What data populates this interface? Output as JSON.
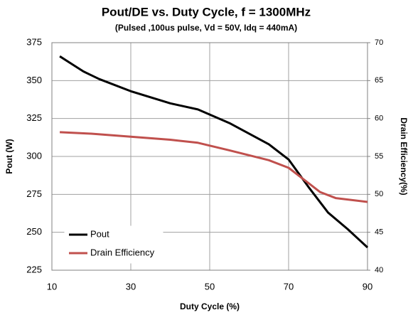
{
  "chart_data": {
    "type": "line",
    "title": "Pout/DE vs. Duty Cycle, f = 1300MHz",
    "subtitle": "(Pulsed ,100us pulse, Vd = 50V, Idq = 440mA)",
    "x_label": "Duty Cycle (%)",
    "y_label": "Pout (W)",
    "y2_label": "Drain Efficiency(%)",
    "xlim": [
      10,
      90
    ],
    "xticks": [
      10,
      30,
      50,
      70,
      90
    ],
    "ylim": [
      225,
      375
    ],
    "yticks": [
      225,
      250,
      275,
      300,
      325,
      350,
      375
    ],
    "y2lim": [
      40,
      70
    ],
    "y2ticks": [
      40,
      45,
      50,
      55,
      60,
      65,
      70
    ],
    "grid": true,
    "legend": "lower left",
    "series": [
      {
        "name": "Pout",
        "color": "#000000",
        "x": [
          12,
          15,
          18,
          22,
          30,
          40,
          47,
          55,
          65,
          70,
          75,
          80,
          85,
          90
        ],
        "values": [
          366,
          361,
          356,
          351,
          343,
          335,
          331,
          322,
          308,
          298,
          280,
          263,
          252,
          240
        ]
      },
      {
        "name": "Drain Efficiency",
        "color": "#c0504d",
        "axis": "y2",
        "x": [
          12,
          20,
          30,
          40,
          47,
          55,
          65,
          70,
          75,
          78,
          82,
          90
        ],
        "values": [
          58.2,
          58,
          57.6,
          57.2,
          56.8,
          55.8,
          54.5,
          53.5,
          51.5,
          50.3,
          49.5,
          49
        ]
      }
    ]
  }
}
